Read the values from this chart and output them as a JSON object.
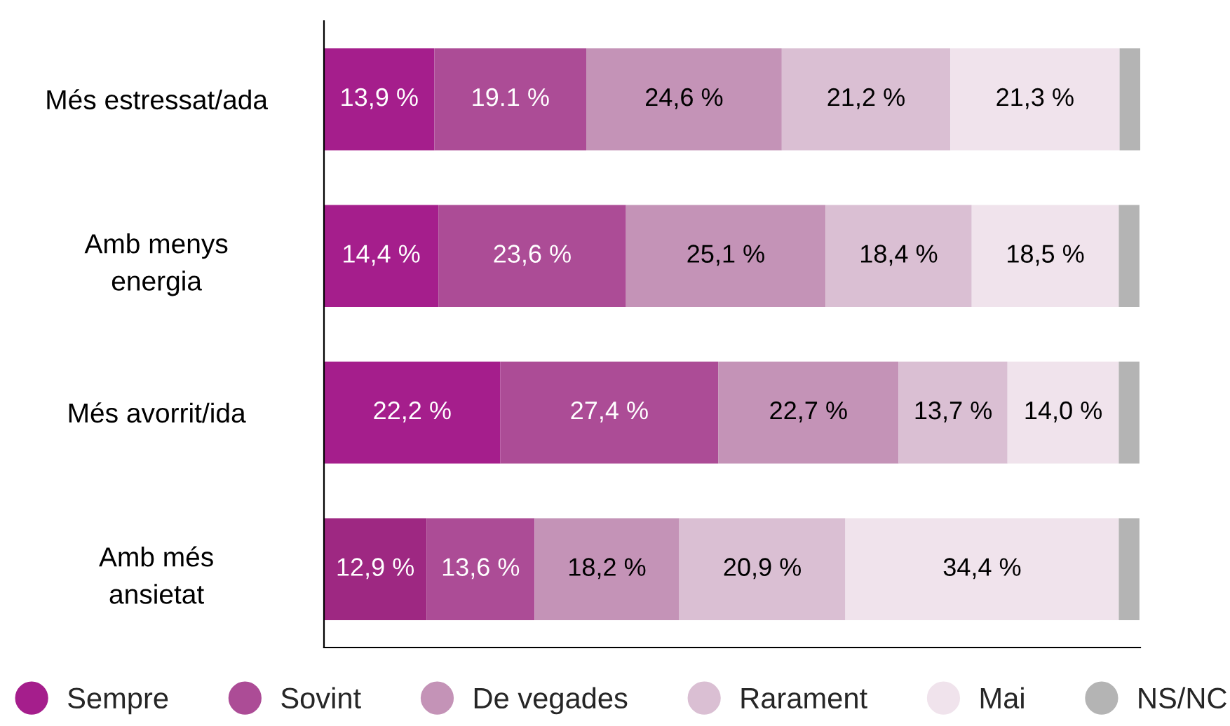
{
  "chart_data": {
    "type": "bar",
    "orientation": "horizontal",
    "stacked": true,
    "categories": [
      "Més estressat/ada",
      "Amb menys\nenergia",
      "Més avorrit/ida",
      "Amb més\nansietat"
    ],
    "series": [
      {
        "name": "Sempre",
        "color": "#a51e8c",
        "colors": [
          "#a51e8c",
          "#a51e8c",
          "#a51e8c",
          "#9e2882"
        ],
        "values": [
          13.9,
          14.4,
          22.2,
          12.9
        ],
        "value_labels": [
          "13,9 %",
          "14,4 %",
          "22,2 %",
          "12,9 %"
        ]
      },
      {
        "name": "Sovint",
        "color": "#ac4c96",
        "values": [
          19.1,
          23.6,
          27.4,
          13.6
        ],
        "value_labels": [
          "19.1 %",
          "23,6 %",
          "27,4 %",
          "13,6 %"
        ]
      },
      {
        "name": "De vegades",
        "color": "#c493b7",
        "values": [
          24.6,
          25.1,
          22.7,
          18.2
        ],
        "value_labels": [
          "24,6 %",
          "25,1 %",
          "22,7 %",
          "18,2 %"
        ]
      },
      {
        "name": "Rarament",
        "color": "#dabfd3",
        "values": [
          21.2,
          18.4,
          13.7,
          20.9
        ],
        "value_labels": [
          "21,2 %",
          "18,4 %",
          "13,7 %",
          "20,9 %"
        ]
      },
      {
        "name": "Mai",
        "color": "#f0e3ec",
        "values": [
          21.3,
          18.5,
          14.0,
          34.4
        ],
        "value_labels": [
          "21,3 %",
          "18,5 %",
          "14,0 %",
          "34,4 %"
        ]
      },
      {
        "name": "NS/NC",
        "color": "#b4b4b4",
        "values": [
          2.6,
          2.6,
          2.6,
          2.6
        ],
        "value_labels": [
          null,
          null,
          null,
          null
        ]
      }
    ],
    "legend": "bottom",
    "tick_labels": "y",
    "grid": false
  }
}
